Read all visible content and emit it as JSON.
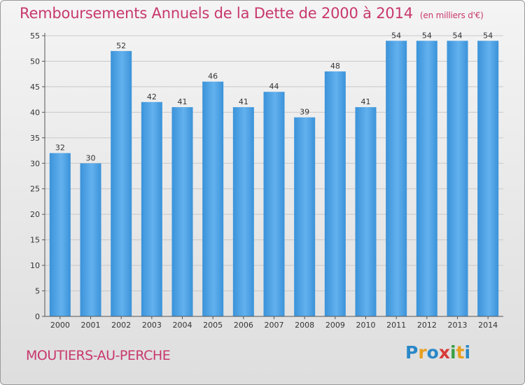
{
  "title": "Remboursements Annuels de la Dette de 2000 à 2014",
  "unit": "(en milliers d'€)",
  "place": "MOUTIERS-AU-PERCHE",
  "logo": {
    "letters": [
      "P",
      "r",
      "o",
      "x",
      "i",
      "t",
      "i"
    ],
    "colors": [
      "#2a88c8",
      "#e8a020",
      "#2a88c8",
      "#d83a3a",
      "#3aa046",
      "#e8a020",
      "#2a88c8"
    ]
  },
  "colors": {
    "bar": "#3b93d9",
    "bar_light": "#63b1ee",
    "grid": "#c8c8c8"
  },
  "chart_data": {
    "type": "bar",
    "categories": [
      "2000",
      "2001",
      "2002",
      "2003",
      "2004",
      "2005",
      "2006",
      "2007",
      "2008",
      "2009",
      "2010",
      "2011",
      "2012",
      "2013",
      "2014"
    ],
    "values": [
      32,
      30,
      52,
      42,
      41,
      46,
      41,
      44,
      39,
      48,
      41,
      54,
      54,
      54,
      54
    ],
    "ylim": [
      0,
      55
    ],
    "yticks": [
      0,
      5,
      10,
      15,
      20,
      25,
      30,
      35,
      40,
      45,
      50,
      55
    ],
    "grid": true,
    "legend": "none"
  }
}
